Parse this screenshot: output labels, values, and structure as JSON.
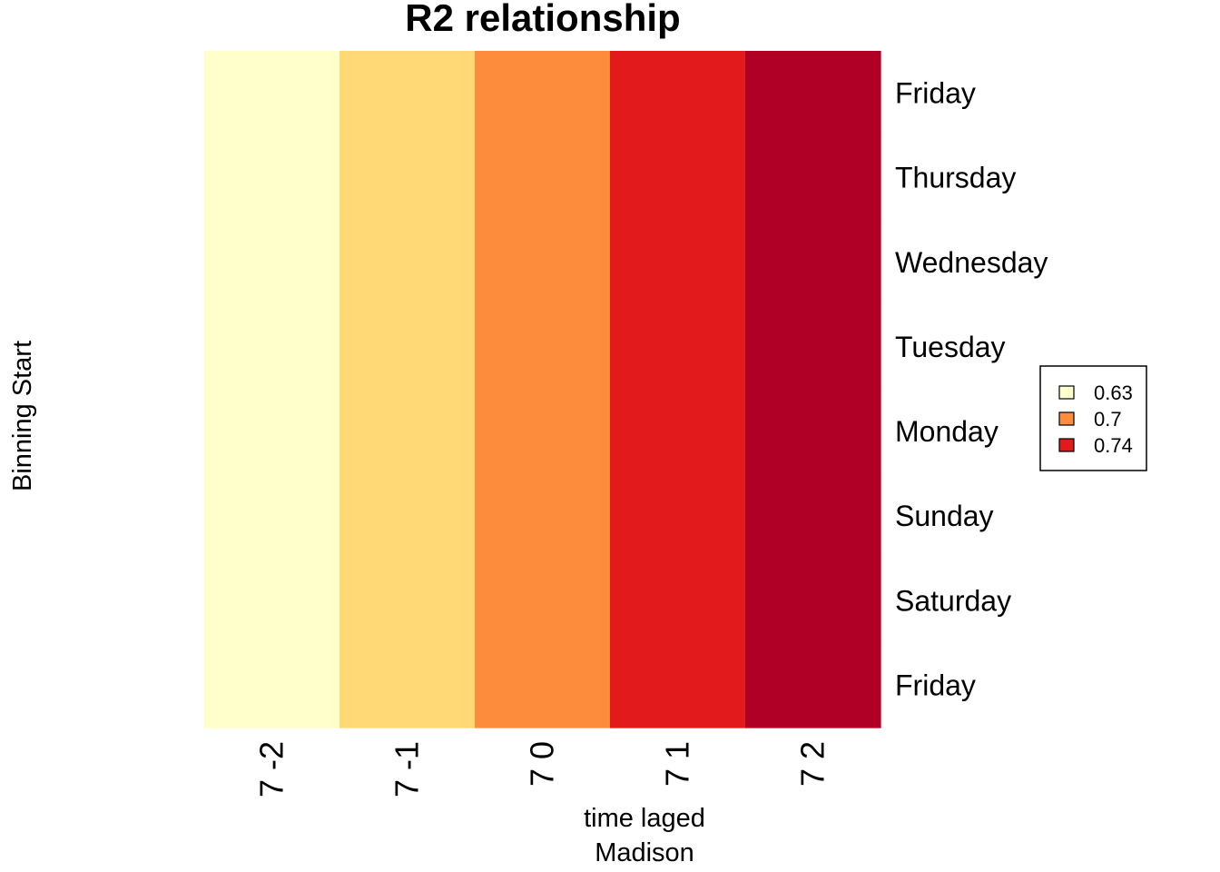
{
  "chart_data": {
    "type": "heatmap",
    "title": "R2 relationship",
    "xlabel": "time laged",
    "xlabel_sub": "Madison",
    "ylabel": "Binning Start",
    "x_categories": [
      "7 -2",
      "7 -1",
      "7 0",
      "7 1",
      "7 2"
    ],
    "y_categories_top_to_bottom": [
      "Friday",
      "Thursday",
      "Wednesday",
      "Tuesday",
      "Monday",
      "Sunday",
      "Saturday",
      "Friday"
    ],
    "column_colors": [
      "#FFFFCC",
      "#FED976",
      "#FD8D3C",
      "#E31A1C",
      "#B10026"
    ],
    "legend": {
      "placement": "right",
      "entries": [
        {
          "label": "0.63",
          "color": "#FFFFCC"
        },
        {
          "label": "0.7",
          "color": "#FD8D3C"
        },
        {
          "label": "0.74",
          "color": "#E31A1C"
        }
      ]
    }
  }
}
